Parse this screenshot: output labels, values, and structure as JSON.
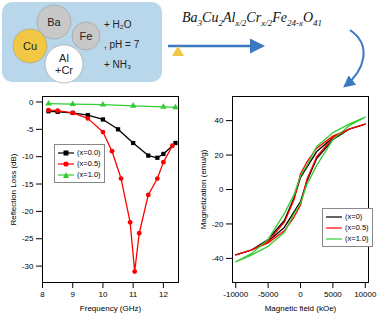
{
  "diagram": {
    "elements": [
      "Ba",
      "Fe",
      "Cu",
      "Al",
      "+Cr"
    ],
    "reagents": [
      "+ H₂O",
      ", pH = 7",
      "+ NH₃"
    ],
    "formula": [
      {
        "text": "Ba"
      },
      {
        "text": "3",
        "sub": true
      },
      {
        "text": "Cu"
      },
      {
        "text": "2",
        "sub": true
      },
      {
        "text": "Al"
      },
      {
        "text": "x/2",
        "sub": true
      },
      {
        "text": "Cr"
      },
      {
        "text": "x/2",
        "sub": true
      },
      {
        "text": "Fe"
      },
      {
        "text": "24-x",
        "sub": true
      },
      {
        "text": "O"
      },
      {
        "text": "41",
        "sub": true
      }
    ]
  },
  "chart_data": [
    {
      "type": "line",
      "x_label": "Frequency (GHz)",
      "y_label": "Reflection Loss (dB)",
      "xlim": [
        8,
        12.5
      ],
      "xticks": [
        8,
        9,
        10,
        11,
        12
      ],
      "ylim": [
        -33,
        1
      ],
      "yticks": [
        0,
        -5,
        -10,
        -15,
        -20,
        -25,
        -30
      ],
      "grid": false,
      "legend": "left",
      "series": [
        {
          "name": "(x=0.0)",
          "color": "#000000",
          "marker": "square",
          "line_style": "solid",
          "x": [
            8.2,
            8.5,
            9,
            9.5,
            10,
            10.5,
            11,
            11.5,
            11.8,
            12,
            12.4
          ],
          "values": [
            -1.7,
            -1.8,
            -2,
            -2.4,
            -3.2,
            -5,
            -7.5,
            -9.8,
            -10.2,
            -9.5,
            -7.5
          ]
        },
        {
          "name": "(x=0.5)",
          "color": "#ff0000",
          "marker": "circle",
          "line_style": "solid",
          "x": [
            8.2,
            8.5,
            9,
            9.5,
            10,
            10.3,
            10.6,
            10.9,
            11.05,
            11.2,
            11.5,
            11.8,
            12,
            12.3
          ],
          "values": [
            -1.5,
            -1.6,
            -2,
            -3,
            -5.5,
            -9,
            -14,
            -22,
            -31,
            -24,
            -17,
            -14,
            -11,
            -8
          ]
        },
        {
          "name": "(x=1.0)",
          "color": "#33cc33",
          "marker": "triangle",
          "line_style": "solid",
          "x": [
            8.2,
            9,
            10,
            11,
            12,
            12.4
          ],
          "values": [
            -0.3,
            -0.4,
            -0.5,
            -0.7,
            -0.9,
            -1.0
          ]
        }
      ]
    },
    {
      "type": "line",
      "x_label": "Magnetic field (kOe)",
      "y_label": "Magnetization (emu/g)",
      "xlim": [
        -10500,
        10500
      ],
      "xticks": [
        -10000,
        -5000,
        0,
        5000,
        10000
      ],
      "ylim": [
        -54,
        54
      ],
      "yticks": [
        -40,
        -20,
        0,
        20,
        40
      ],
      "grid": false,
      "legend": "lower right",
      "x": [
        10000,
        7500,
        5000,
        2500,
        1000,
        0,
        -1000,
        -2500,
        -5000,
        -7500,
        -10000,
        -7500,
        -5000,
        -2500,
        -1000,
        0,
        1000,
        2500,
        5000,
        7500,
        10000
      ],
      "series": [
        {
          "name": "(x=0)",
          "color": "#000000",
          "line_style": "solid",
          "values": [
            38,
            35,
            30,
            22,
            13,
            7,
            -5,
            -18,
            -29,
            -35,
            -38,
            -35,
            -30,
            -22,
            -13,
            -7,
            5,
            18,
            29,
            35,
            38
          ]
        },
        {
          "name": "(x=0.5)",
          "color": "#ff0000",
          "line_style": "solid",
          "values": [
            38,
            35,
            31,
            24,
            16,
            9,
            -6,
            -19,
            -30,
            -35,
            -38,
            -35,
            -31,
            -24,
            -16,
            -9,
            6,
            19,
            30,
            35,
            38
          ]
        },
        {
          "name": "(x=1.0)",
          "color": "#33cc33",
          "line_style": "solid",
          "values": [
            42,
            38,
            33,
            25,
            14,
            8,
            -3,
            -14,
            -29,
            -37,
            -42,
            -38,
            -33,
            -25,
            -14,
            -8,
            3,
            14,
            29,
            37,
            42
          ]
        }
      ]
    }
  ]
}
